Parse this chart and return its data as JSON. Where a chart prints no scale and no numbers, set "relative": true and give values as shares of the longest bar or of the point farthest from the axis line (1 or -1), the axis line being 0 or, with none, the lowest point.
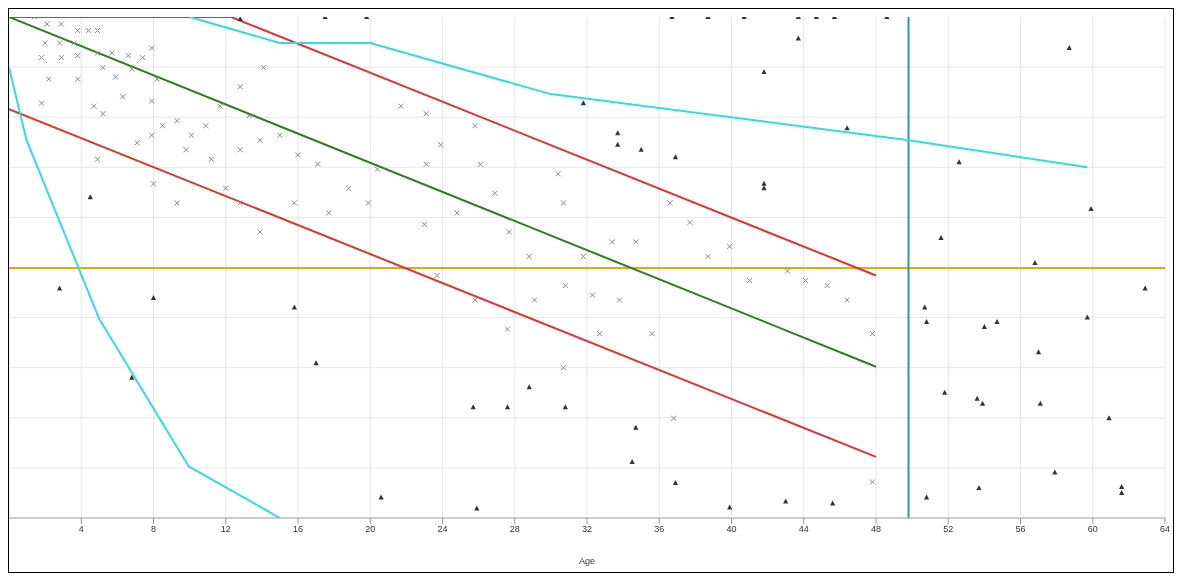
{
  "chart_data": {
    "type": "scatter",
    "relative": true,
    "xlabel": "Age",
    "xlim": [
      0,
      64
    ],
    "xticks": [
      4,
      8,
      12,
      16,
      20,
      24,
      28,
      32,
      36,
      40,
      44,
      48,
      52,
      56,
      60,
      64
    ],
    "grid": true,
    "ref_lines": [
      {
        "axis": "y",
        "value": 0.499,
        "color": "#f0a010"
      },
      {
        "axis": "x",
        "value": 49.8,
        "color": "#2a9a9a"
      }
    ],
    "series": [
      {
        "marker": "cross",
        "color": "#888888",
        "x": [
          1.4,
          2.1,
          2.9,
          3.8,
          4.4,
          4.9,
          2.0,
          2.8,
          3.6,
          1.8,
          2.9,
          3.8,
          4.9,
          5.7,
          6.6,
          7.4,
          7.9,
          2.2,
          3.8,
          5.2,
          5.9,
          6.8,
          8.2,
          4.7,
          1.8,
          5.2,
          6.3,
          7.9,
          8.5,
          7.9,
          9.3,
          10.1,
          10.9,
          11.7,
          12.8,
          13.3,
          14.1,
          13.9,
          15.0,
          16.0,
          17.1,
          12.8,
          11.2,
          9.8,
          7.1,
          4.9,
          8.0,
          9.3,
          12.0,
          12.8,
          13.9,
          15.8,
          17.7,
          18.8,
          19.9,
          20.4,
          21.7,
          23.1,
          23.9,
          23.1,
          25.8,
          26.1,
          24.8,
          23.0,
          23.7,
          25.8,
          26.9,
          27.7,
          28.8,
          29.1,
          30.7,
          30.8,
          32.3,
          30.7,
          33.8,
          34.7,
          36.6,
          37.7,
          38.7,
          39.9,
          41.0,
          43.1,
          44.1,
          45.3,
          46.4,
          47.8,
          47.8,
          36.8,
          27.6,
          32.7,
          35.6,
          31.8,
          30.4,
          33.4
        ],
        "values": [
          1.0,
          0.986,
          0.986,
          0.973,
          0.973,
          0.973,
          0.948,
          0.948,
          0.948,
          0.919,
          0.919,
          0.923,
          0.928,
          0.928,
          0.923,
          0.919,
          0.938,
          0.876,
          0.876,
          0.899,
          0.88,
          0.896,
          0.876,
          0.822,
          0.828,
          0.807,
          0.841,
          0.832,
          0.783,
          0.764,
          0.793,
          0.764,
          0.783,
          0.822,
          0.861,
          0.803,
          0.899,
          0.754,
          0.764,
          0.725,
          0.706,
          0.735,
          0.716,
          0.735,
          0.749,
          0.716,
          0.667,
          0.629,
          0.658,
          0.629,
          0.571,
          0.629,
          0.609,
          0.658,
          0.629,
          0.696,
          0.822,
          0.807,
          0.745,
          0.706,
          0.783,
          0.706,
          0.609,
          0.586,
          0.484,
          0.435,
          0.648,
          0.571,
          0.522,
          0.435,
          0.629,
          0.464,
          0.445,
          0.3,
          0.435,
          0.551,
          0.629,
          0.59,
          0.522,
          0.542,
          0.474,
          0.493,
          0.474,
          0.464,
          0.435,
          0.368,
          0.072,
          0.199,
          0.377,
          0.368,
          0.368,
          0.522,
          0.687,
          0.551
        ]
      },
      {
        "marker": "triangle",
        "color": "#333333",
        "x": [
          2.8,
          4.5,
          6.8,
          8.0,
          12.8,
          15.8,
          17.0,
          17.5,
          19.8,
          20.6,
          25.7,
          25.9,
          27.6,
          28.8,
          30.8,
          31.8,
          33.7,
          33.7,
          34.7,
          34.5,
          35.0,
          36.7,
          36.9,
          36.9,
          38.7,
          39.9,
          40.7,
          41.8,
          41.8,
          41.8,
          43.0,
          43.7,
          43.7,
          44.7,
          45.6,
          45.7,
          46.4,
          48.6,
          50.7,
          50.8,
          50.8,
          51.6,
          51.8,
          52.6,
          53.6,
          53.7,
          54.0,
          53.9,
          54.7,
          56.8,
          57.0,
          57.1,
          57.9,
          58.7,
          59.7,
          59.9,
          60.9,
          61.6,
          61.6,
          62.9
        ],
        "values": [
          0.458,
          0.64,
          0.28,
          0.439,
          0.996,
          0.42,
          0.309,
          1.0,
          1.0,
          0.041,
          0.221,
          0.019,
          0.221,
          0.261,
          0.221,
          0.828,
          0.768,
          0.745,
          0.18,
          0.112,
          0.735,
          1.0,
          0.72,
          0.07,
          1.0,
          0.021,
          1.0,
          0.89,
          0.667,
          0.658,
          0.033,
          1.0,
          0.957,
          1.0,
          0.029,
          1.0,
          0.778,
          1.0,
          0.42,
          0.391,
          0.041,
          0.559,
          0.25,
          0.71,
          0.238,
          0.06,
          0.381,
          0.228,
          0.391,
          0.509,
          0.331,
          0.228,
          0.091,
          0.938,
          0.4,
          0.617,
          0.199,
          0.062,
          0.05,
          0.458
        ]
      },
      {
        "type": "line",
        "color": "#2e7d1e",
        "x": [
          0,
          48
        ],
        "values": [
          1.0,
          0.302
        ]
      },
      {
        "type": "line",
        "color": "#e53030",
        "x": [
          0,
          12.3,
          48
        ],
        "values": [
          1.0,
          1.0,
          0.484
        ]
      },
      {
        "type": "line",
        "color": "#e53030",
        "x": [
          0,
          48
        ],
        "values": [
          0.816,
          0.122
        ]
      },
      {
        "type": "line",
        "color": "#33dddd",
        "x": [
          0,
          0.97,
          5.0,
          9.95,
          15.0
        ],
        "values": [
          0.899,
          0.754,
          0.397,
          0.103,
          0
        ]
      },
      {
        "type": "line",
        "color": "#33dddd",
        "x": [
          10,
          15,
          20,
          29.9,
          49.8,
          59.7
        ],
        "values": [
          1.0,
          0.948,
          0.948,
          0.847,
          0.754,
          0.7
        ]
      }
    ]
  }
}
